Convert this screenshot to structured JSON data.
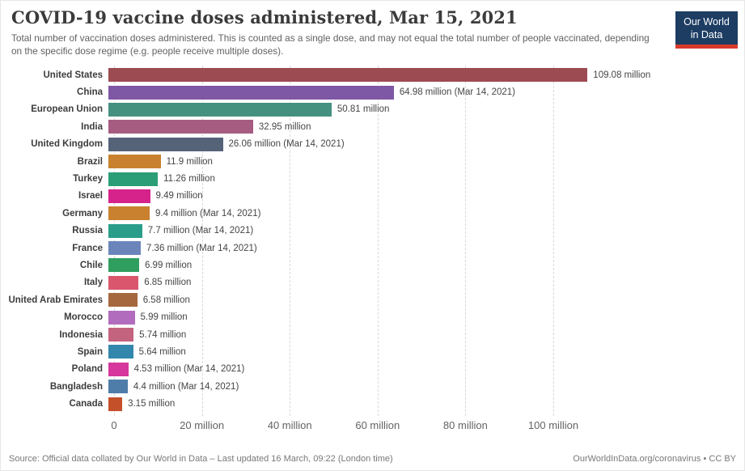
{
  "header": {
    "title": "COVID-19 vaccine doses administered, Mar 15, 2021",
    "subtitle": "Total number of vaccination doses administered. This is counted as a single dose, and may not equal the total number of people vaccinated, depending on the specific dose regime (e.g. people receive multiple doses)."
  },
  "logo": {
    "line1": "Our World",
    "line2": "in Data",
    "bg_color": "#1d3d63",
    "accent_color": "#d93a2b"
  },
  "chart_data": {
    "type": "bar",
    "orientation": "horizontal",
    "title": "COVID-19 vaccine doses administered, Mar 15, 2021",
    "x_unit": "million doses",
    "xlim": [
      0,
      136
    ],
    "grid": "vertical-dashed",
    "categories": [
      "United States",
      "China",
      "European Union",
      "India",
      "United Kingdom",
      "Brazil",
      "Turkey",
      "Israel",
      "Germany",
      "Russia",
      "France",
      "Chile",
      "Italy",
      "United Arab Emirates",
      "Morocco",
      "Indonesia",
      "Spain",
      "Poland",
      "Bangladesh",
      "Canada"
    ],
    "values": [
      109.08,
      64.98,
      50.81,
      32.95,
      26.06,
      11.9,
      11.26,
      9.49,
      9.4,
      7.7,
      7.36,
      6.99,
      6.85,
      6.58,
      5.99,
      5.74,
      5.64,
      4.53,
      4.4,
      3.15
    ],
    "value_labels": [
      "109.08 million",
      "64.98 million (Mar 14, 2021)",
      "50.81 million",
      "32.95 million",
      "26.06 million (Mar 14, 2021)",
      "11.9 million",
      "11.26 million",
      "9.49 million",
      "9.4 million (Mar 14, 2021)",
      "7.7 million (Mar 14, 2021)",
      "7.36 million (Mar 14, 2021)",
      "6.99 million",
      "6.85 million",
      "6.58 million",
      "5.99 million",
      "5.74 million",
      "5.64 million",
      "4.53 million (Mar 14, 2021)",
      "4.4 million (Mar 14, 2021)",
      "3.15 million"
    ],
    "bar_colors": [
      "#9d4b53",
      "#7e57a5",
      "#44917f",
      "#a65b80",
      "#556379",
      "#c9812f",
      "#2b9d77",
      "#d6228b",
      "#c9812f",
      "#2a9d8a",
      "#6b85ba",
      "#309e5f",
      "#d9566c",
      "#a5683e",
      "#b16cbe",
      "#c4637e",
      "#3387ad",
      "#d5379c",
      "#4f7da9",
      "#c4502a"
    ],
    "x_ticks": [
      {
        "value": 0,
        "label": "0"
      },
      {
        "value": 20,
        "label": "20 million"
      },
      {
        "value": 40,
        "label": "40 million"
      },
      {
        "value": 60,
        "label": "60 million"
      },
      {
        "value": 80,
        "label": "80 million"
      },
      {
        "value": 100,
        "label": "100 million"
      }
    ]
  },
  "footer": {
    "source": "Source: Official data collated by Our World in Data – Last updated 16 March, 09:22 (London time)",
    "attribution": "OurWorldInData.org/coronavirus • CC BY"
  }
}
